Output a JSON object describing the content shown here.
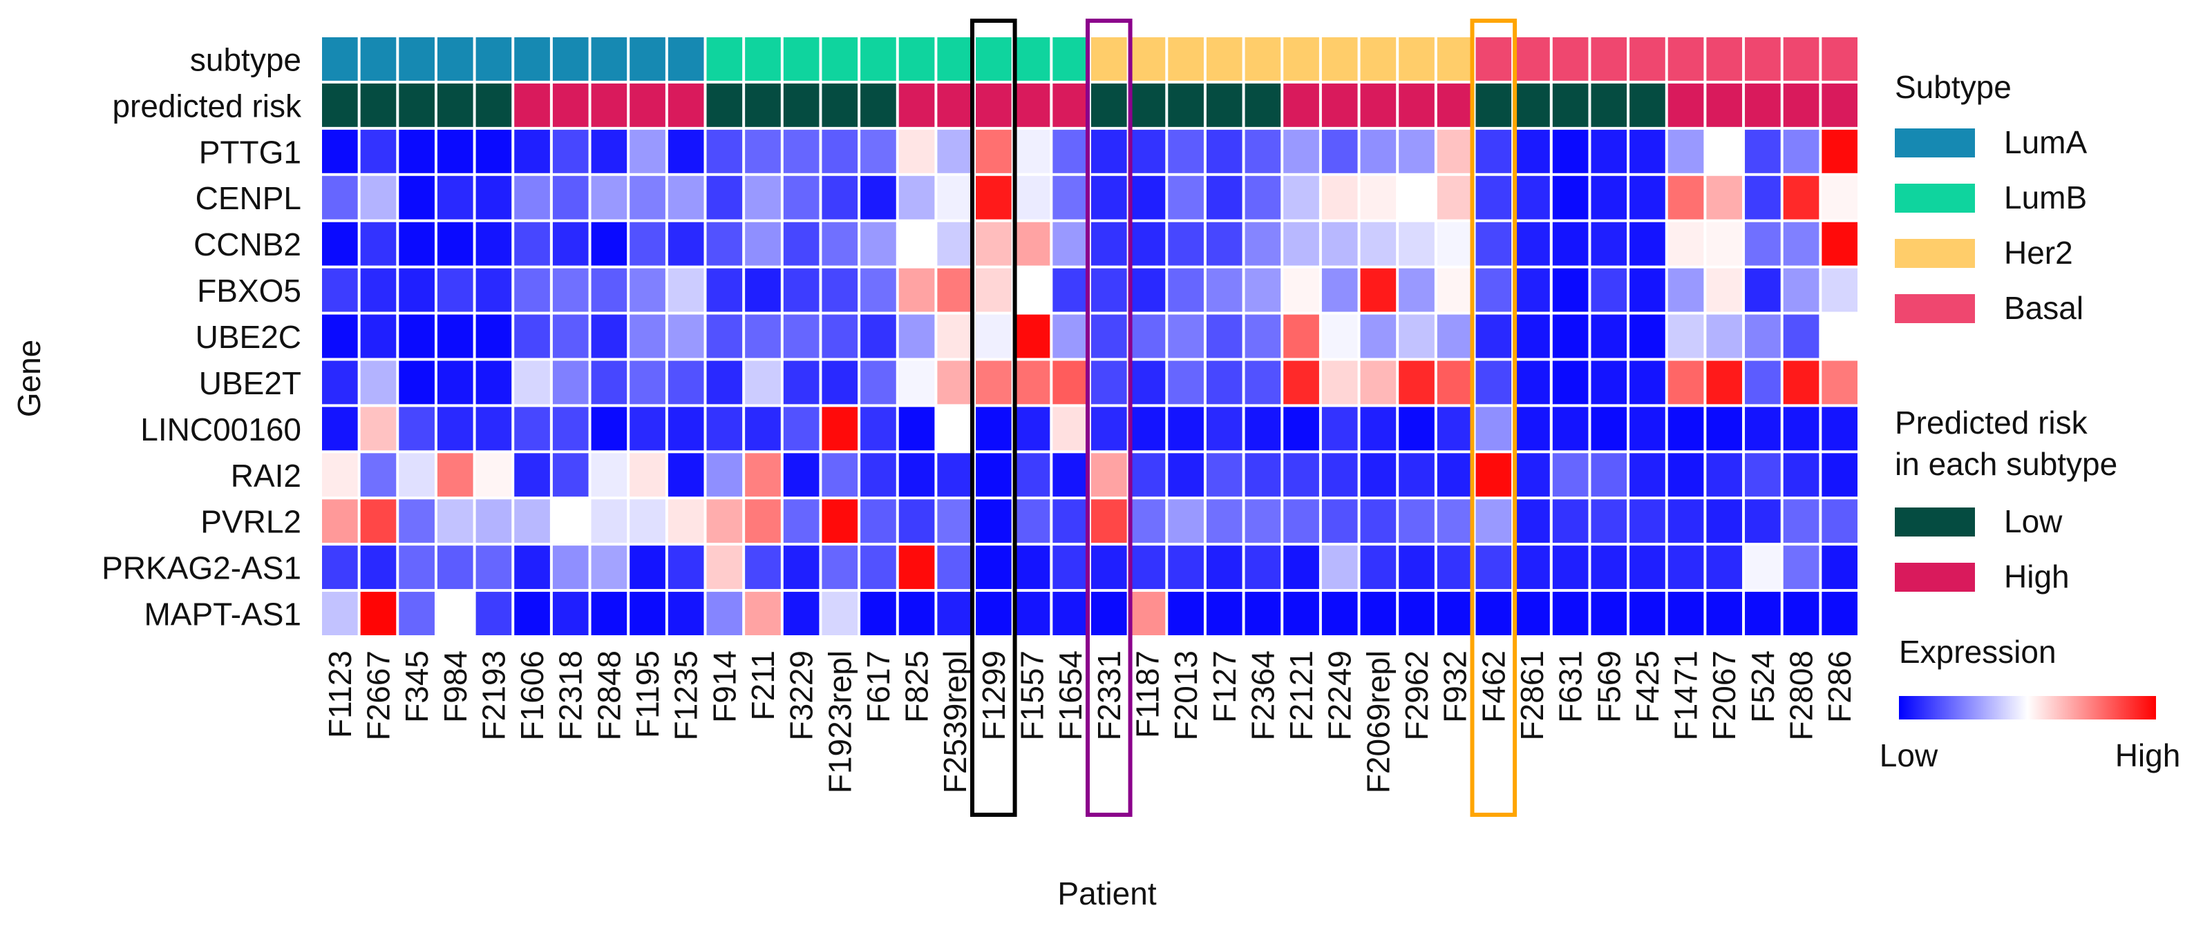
{
  "chart_data": {
    "type": "heatmap",
    "xlabel": "Patient",
    "ylabel": "Gene",
    "patients": [
      "F1123",
      "F2667",
      "F345",
      "F984",
      "F2193",
      "F1606",
      "F2318",
      "F2848",
      "F1195",
      "F1235",
      "F914",
      "F211",
      "F3229",
      "F1923repl",
      "F617",
      "F825",
      "F2539repl",
      "F1299",
      "F1557",
      "F1654",
      "F2331",
      "F1187",
      "F2013",
      "F127",
      "F2364",
      "F2121",
      "F2249",
      "F2069repl",
      "F2962",
      "F932",
      "F462",
      "F2861",
      "F631",
      "F569",
      "F425",
      "F1471",
      "F2067",
      "F524",
      "F2808",
      "F286"
    ],
    "annotation_rows": [
      {
        "label": "subtype",
        "values": [
          "LumA",
          "LumA",
          "LumA",
          "LumA",
          "LumA",
          "LumA",
          "LumA",
          "LumA",
          "LumA",
          "LumA",
          "LumB",
          "LumB",
          "LumB",
          "LumB",
          "LumB",
          "LumB",
          "LumB",
          "LumB",
          "LumB",
          "LumB",
          "Her2",
          "Her2",
          "Her2",
          "Her2",
          "Her2",
          "Her2",
          "Her2",
          "Her2",
          "Her2",
          "Her2",
          "Basal",
          "Basal",
          "Basal",
          "Basal",
          "Basal",
          "Basal",
          "Basal",
          "Basal",
          "Basal",
          "Basal"
        ]
      },
      {
        "label": "predicted risk",
        "values": [
          "Low",
          "Low",
          "Low",
          "Low",
          "Low",
          "High",
          "High",
          "High",
          "High",
          "High",
          "Low",
          "Low",
          "Low",
          "Low",
          "Low",
          "High",
          "High",
          "High",
          "High",
          "High",
          "Low",
          "Low",
          "Low",
          "Low",
          "Low",
          "High",
          "High",
          "High",
          "High",
          "High",
          "Low",
          "Low",
          "Low",
          "Low",
          "Low",
          "High",
          "High",
          "High",
          "High",
          "High"
        ]
      }
    ],
    "genes": [
      "PTTG1",
      "CENPL",
      "CCNB2",
      "FBXO5",
      "UBE2C",
      "UBE2T",
      "LINC00160",
      "RAI2",
      "PVRL2",
      "PRKAG2-AS1",
      "MAPT-AS1"
    ],
    "expression_scale": "0 = low (blue), 0.5 = mid (white), 1 = high (red)",
    "expression": [
      [
        0.02,
        0.1,
        0.02,
        0.02,
        0.02,
        0.06,
        0.14,
        0.06,
        0.3,
        0.04,
        0.15,
        0.2,
        0.2,
        0.18,
        0.22,
        0.55,
        0.35,
        0.78,
        0.47,
        0.2,
        0.08,
        0.1,
        0.18,
        0.12,
        0.18,
        0.3,
        0.18,
        0.28,
        0.3,
        0.62,
        0.12,
        0.05,
        0.02,
        0.05,
        0.05,
        0.3,
        0.5,
        0.14,
        0.25,
        0.98
      ],
      [
        0.2,
        0.35,
        0.02,
        0.08,
        0.06,
        0.25,
        0.18,
        0.3,
        0.25,
        0.3,
        0.12,
        0.3,
        0.2,
        0.12,
        0.05,
        0.35,
        0.47,
        0.95,
        0.46,
        0.22,
        0.08,
        0.06,
        0.22,
        0.1,
        0.2,
        0.38,
        0.55,
        0.53,
        0.5,
        0.6,
        0.12,
        0.08,
        0.02,
        0.05,
        0.05,
        0.78,
        0.66,
        0.12,
        0.92,
        0.52
      ],
      [
        0.02,
        0.1,
        0.02,
        0.02,
        0.04,
        0.14,
        0.08,
        0.02,
        0.16,
        0.08,
        0.16,
        0.28,
        0.14,
        0.22,
        0.3,
        0.5,
        0.4,
        0.63,
        0.68,
        0.3,
        0.1,
        0.08,
        0.14,
        0.14,
        0.26,
        0.36,
        0.36,
        0.4,
        0.43,
        0.48,
        0.14,
        0.06,
        0.04,
        0.06,
        0.04,
        0.53,
        0.52,
        0.22,
        0.25,
        0.98
      ],
      [
        0.12,
        0.08,
        0.06,
        0.12,
        0.08,
        0.2,
        0.22,
        0.18,
        0.25,
        0.4,
        0.1,
        0.06,
        0.12,
        0.14,
        0.22,
        0.68,
        0.76,
        0.58,
        0.5,
        0.12,
        0.12,
        0.08,
        0.2,
        0.25,
        0.3,
        0.52,
        0.28,
        0.95,
        0.3,
        0.52,
        0.18,
        0.06,
        0.02,
        0.12,
        0.04,
        0.3,
        0.54,
        0.08,
        0.3,
        0.42
      ],
      [
        0.02,
        0.06,
        0.02,
        0.02,
        0.02,
        0.14,
        0.18,
        0.08,
        0.25,
        0.3,
        0.16,
        0.2,
        0.2,
        0.16,
        0.1,
        0.3,
        0.55,
        0.47,
        0.98,
        0.3,
        0.14,
        0.2,
        0.24,
        0.16,
        0.22,
        0.8,
        0.48,
        0.3,
        0.38,
        0.3,
        0.08,
        0.04,
        0.02,
        0.04,
        0.02,
        0.4,
        0.35,
        0.26,
        0.16,
        0.5
      ],
      [
        0.08,
        0.35,
        0.02,
        0.04,
        0.04,
        0.42,
        0.25,
        0.14,
        0.2,
        0.16,
        0.08,
        0.4,
        0.1,
        0.08,
        0.2,
        0.48,
        0.66,
        0.76,
        0.78,
        0.82,
        0.14,
        0.08,
        0.2,
        0.14,
        0.16,
        0.92,
        0.58,
        0.64,
        0.92,
        0.82,
        0.14,
        0.04,
        0.02,
        0.04,
        0.04,
        0.8,
        0.95,
        0.18,
        0.95,
        0.76
      ],
      [
        0.04,
        0.62,
        0.14,
        0.08,
        0.08,
        0.14,
        0.14,
        0.02,
        0.08,
        0.06,
        0.1,
        0.08,
        0.16,
        0.98,
        0.1,
        0.02,
        0.5,
        0.02,
        0.06,
        0.56,
        0.08,
        0.04,
        0.04,
        0.08,
        0.04,
        0.02,
        0.1,
        0.06,
        0.02,
        0.08,
        0.28,
        0.04,
        0.04,
        0.02,
        0.04,
        0.02,
        0.02,
        0.04,
        0.04,
        0.04
      ],
      [
        0.54,
        0.22,
        0.44,
        0.76,
        0.52,
        0.08,
        0.14,
        0.46,
        0.55,
        0.04,
        0.28,
        0.75,
        0.04,
        0.2,
        0.1,
        0.04,
        0.08,
        0.02,
        0.12,
        0.04,
        0.68,
        0.12,
        0.06,
        0.16,
        0.12,
        0.12,
        0.1,
        0.06,
        0.08,
        0.06,
        0.98,
        0.06,
        0.2,
        0.18,
        0.06,
        0.04,
        0.08,
        0.14,
        0.08,
        0.04
      ],
      [
        0.7,
        0.86,
        0.22,
        0.38,
        0.35,
        0.36,
        0.5,
        0.44,
        0.44,
        0.55,
        0.66,
        0.76,
        0.2,
        0.98,
        0.18,
        0.12,
        0.22,
        0.02,
        0.18,
        0.12,
        0.86,
        0.22,
        0.3,
        0.22,
        0.22,
        0.2,
        0.16,
        0.14,
        0.2,
        0.22,
        0.3,
        0.06,
        0.1,
        0.12,
        0.1,
        0.08,
        0.06,
        0.08,
        0.2,
        0.18
      ],
      [
        0.12,
        0.08,
        0.2,
        0.18,
        0.2,
        0.06,
        0.28,
        0.32,
        0.04,
        0.1,
        0.6,
        0.14,
        0.06,
        0.2,
        0.16,
        0.98,
        0.18,
        0.02,
        0.04,
        0.1,
        0.06,
        0.1,
        0.1,
        0.06,
        0.1,
        0.04,
        0.36,
        0.1,
        0.06,
        0.1,
        0.12,
        0.06,
        0.06,
        0.06,
        0.06,
        0.08,
        0.08,
        0.48,
        0.22,
        0.04
      ],
      [
        0.38,
        0.99,
        0.2,
        0.5,
        0.12,
        0.02,
        0.06,
        0.02,
        0.02,
        0.04,
        0.26,
        0.68,
        0.04,
        0.42,
        0.02,
        0.02,
        0.06,
        0.02,
        0.04,
        0.04,
        0.02,
        0.72,
        0.02,
        0.02,
        0.02,
        0.02,
        0.02,
        0.02,
        0.02,
        0.02,
        0.02,
        0.02,
        0.02,
        0.02,
        0.02,
        0.02,
        0.02,
        0.02,
        0.02,
        0.02
      ]
    ],
    "highlight_boxes": [
      {
        "patient": "F1299",
        "color": "#000000"
      },
      {
        "patient": "F2331",
        "color": "#8b008b"
      },
      {
        "patient": "F462",
        "color": "#ffa500"
      }
    ],
    "legend": {
      "subtype": {
        "title": "Subtype",
        "entries": [
          {
            "label": "LumA",
            "color": "#1689b2"
          },
          {
            "label": "LumB",
            "color": "#0fd49e"
          },
          {
            "label": "Her2",
            "color": "#ffcd6a"
          },
          {
            "label": "Basal",
            "color": "#ef476f"
          }
        ]
      },
      "risk": {
        "title_line1": "Predicted risk",
        "title_line2": "in each subtype",
        "entries": [
          {
            "label": "Low",
            "color": "#054c41"
          },
          {
            "label": "High",
            "color": "#d91a5c"
          }
        ]
      },
      "expression": {
        "title": "Expression",
        "low_label": "Low",
        "high_label": "High",
        "low_color": "#0000ff",
        "mid_color": "#ffffff",
        "high_color": "#ff0000"
      }
    }
  }
}
